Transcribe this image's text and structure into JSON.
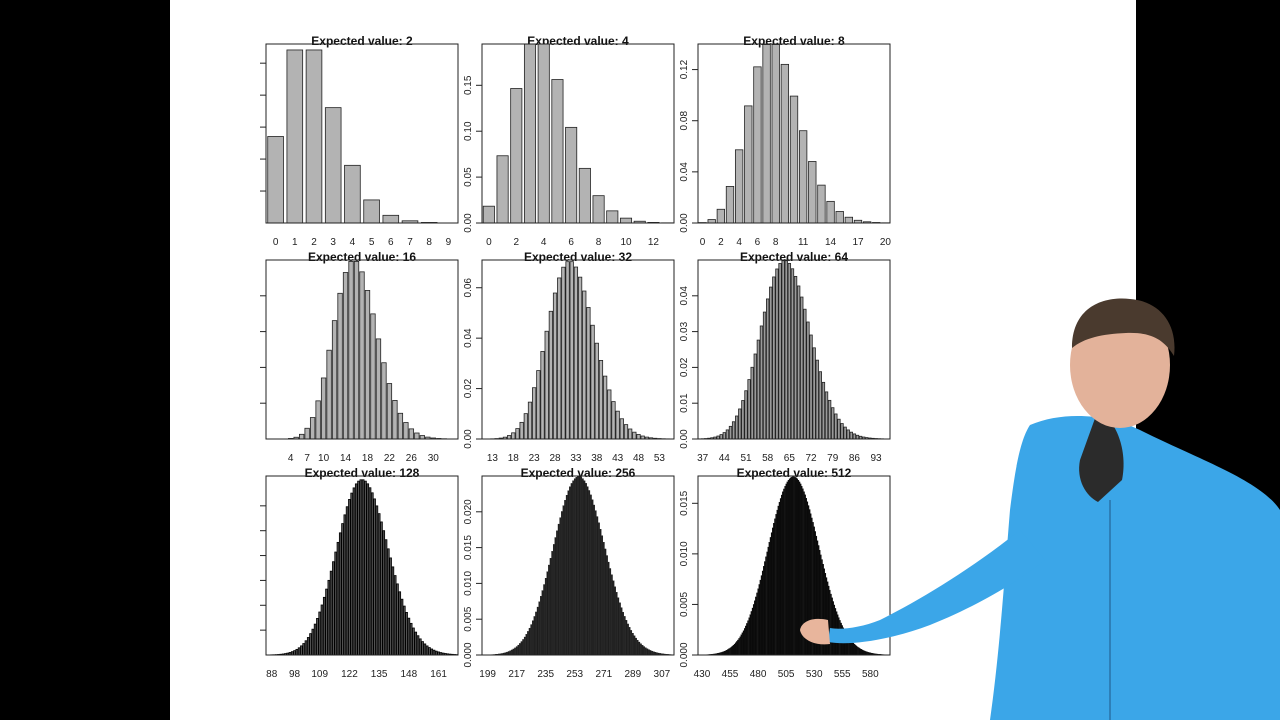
{
  "chart_data": [
    {
      "type": "bar",
      "title": "Expected value: 2",
      "lambda": 2,
      "xlim": [
        0,
        10
      ],
      "ylim": [
        0,
        0.28
      ],
      "xticks": [
        0,
        1,
        2,
        3,
        4,
        5,
        6,
        7,
        8,
        9
      ],
      "yticks": [
        0.05,
        0.1,
        0.15,
        0.2,
        0.25
      ],
      "ytick_labels": [
        "",
        "",
        "",
        "",
        ""
      ],
      "bar_fill": "#b3b3b3"
    },
    {
      "type": "bar",
      "title": "Expected value: 4",
      "lambda": 4,
      "xlim": [
        0,
        14
      ],
      "ylim": [
        0,
        0.195
      ],
      "xticks": [
        0,
        2,
        4,
        6,
        8,
        10,
        12
      ],
      "yticks": [
        0,
        0.05,
        0.1,
        0.15
      ],
      "ytick_labels": [
        "0.00",
        "0.05",
        "0.10",
        "0.15"
      ],
      "bar_fill": "#b3b3b3"
    },
    {
      "type": "bar",
      "title": "Expected value: 8",
      "lambda": 8,
      "xlim": [
        0,
        21
      ],
      "ylim": [
        0,
        0.14
      ],
      "xticks": [
        0,
        2,
        4,
        6,
        8,
        11,
        14,
        17,
        20
      ],
      "yticks": [
        0,
        0.04,
        0.08,
        0.12
      ],
      "ytick_labels": [
        "0.00",
        "0.04",
        "0.08",
        "0.12"
      ],
      "bar_fill": "#b3b3b3"
    },
    {
      "type": "bar",
      "title": "Expected value: 16",
      "lambda": 16,
      "xlim": [
        0,
        35
      ],
      "ylim": [
        0,
        0.1
      ],
      "xticks": [
        4,
        7,
        10,
        14,
        18,
        22,
        26,
        30
      ],
      "yticks": [
        0.02,
        0.04,
        0.06,
        0.08
      ],
      "ytick_labels": [
        "",
        "",
        "",
        ""
      ],
      "bar_fill": "#b3b3b3"
    },
    {
      "type": "bar",
      "title": "Expected value: 32",
      "lambda": 32,
      "xlim": [
        11,
        57
      ],
      "ylim": [
        0,
        0.071
      ],
      "xticks": [
        13,
        18,
        23,
        28,
        33,
        38,
        43,
        48,
        53
      ],
      "yticks": [
        0,
        0.02,
        0.04,
        0.06
      ],
      "ytick_labels": [
        "0.00",
        "0.02",
        "0.04",
        "0.06"
      ],
      "bar_fill": "#b3b3b3"
    },
    {
      "type": "bar",
      "title": "Expected value: 64",
      "lambda": 64,
      "xlim": [
        36,
        98
      ],
      "ylim": [
        0,
        0.05
      ],
      "xticks": [
        37,
        44,
        51,
        58,
        65,
        72,
        79,
        86,
        93
      ],
      "yticks": [
        0,
        0.01,
        0.02,
        0.03,
        0.04
      ],
      "ytick_labels": [
        "0.00",
        "0.01",
        "0.02",
        "0.03",
        "0.04"
      ],
      "bar_fill": "#9a9a9a"
    },
    {
      "type": "bar",
      "title": "Expected value: 128",
      "lambda": 128,
      "xlim": [
        86,
        170
      ],
      "ylim": [
        0,
        0.036
      ],
      "xticks": [
        88,
        98,
        109,
        122,
        135,
        148,
        161
      ],
      "yticks": [
        0.005,
        0.01,
        0.015,
        0.02,
        0.025,
        0.03
      ],
      "ytick_labels": [
        "",
        "",
        "",
        "",
        "",
        ""
      ],
      "bar_fill": "#555555"
    },
    {
      "type": "bar",
      "title": "Expected value: 256",
      "lambda": 256,
      "xlim": [
        196,
        315
      ],
      "ylim": [
        0,
        0.025
      ],
      "xticks": [
        199,
        217,
        235,
        253,
        271,
        289,
        307
      ],
      "yticks": [
        0,
        0.005,
        0.01,
        0.015,
        0.02
      ],
      "ytick_labels": [
        "0.000",
        "0.005",
        "0.010",
        "0.015",
        "0.020"
      ],
      "bar_fill": "#222222"
    },
    {
      "type": "bar",
      "title": "Expected value: 512",
      "lambda": 512,
      "xlim": [
        427,
        598
      ],
      "ylim": [
        0,
        0.0177
      ],
      "xticks": [
        430,
        455,
        480,
        505,
        530,
        555,
        580
      ],
      "yticks": [
        0,
        0.005,
        0.01,
        0.015
      ],
      "ytick_labels": [
        "0.000",
        "0.005",
        "0.010",
        "0.015"
      ],
      "bar_fill": "#000000"
    }
  ],
  "colors": {
    "slide_bg": "#ffffff",
    "frame_bg": "#000000",
    "presenter_hoodie": "#3ba6e8"
  }
}
